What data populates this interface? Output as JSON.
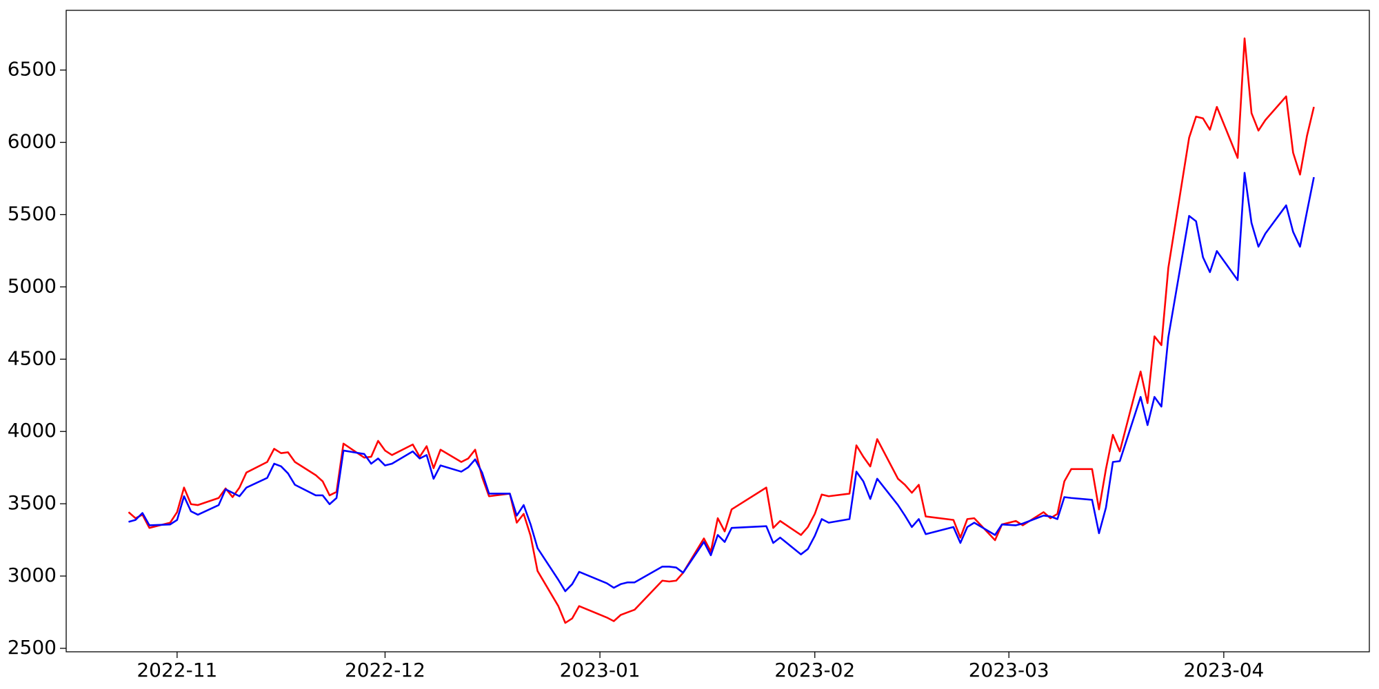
{
  "chart_data": {
    "type": "line",
    "x": [
      "2022-10-25",
      "2022-10-26",
      "2022-10-27",
      "2022-10-28",
      "2022-10-31",
      "2022-11-01",
      "2022-11-02",
      "2022-11-03",
      "2022-11-04",
      "2022-11-07",
      "2022-11-08",
      "2022-11-09",
      "2022-11-10",
      "2022-11-11",
      "2022-11-14",
      "2022-11-15",
      "2022-11-16",
      "2022-11-17",
      "2022-11-18",
      "2022-11-21",
      "2022-11-22",
      "2022-11-23",
      "2022-11-24",
      "2022-11-25",
      "2022-11-28",
      "2022-11-29",
      "2022-11-30",
      "2022-12-01",
      "2022-12-02",
      "2022-12-05",
      "2022-12-06",
      "2022-12-07",
      "2022-12-08",
      "2022-12-09",
      "2022-12-12",
      "2022-12-13",
      "2022-12-14",
      "2022-12-15",
      "2022-12-16",
      "2022-12-19",
      "2022-12-20",
      "2022-12-21",
      "2022-12-22",
      "2022-12-23",
      "2022-12-26",
      "2022-12-27",
      "2022-12-28",
      "2022-12-29",
      "2023-01-02",
      "2023-01-03",
      "2023-01-04",
      "2023-01-05",
      "2023-01-06",
      "2023-01-10",
      "2023-01-11",
      "2023-01-12",
      "2023-01-13",
      "2023-01-16",
      "2023-01-17",
      "2023-01-18",
      "2023-01-19",
      "2023-01-20",
      "2023-01-25",
      "2023-01-26",
      "2023-01-27",
      "2023-01-30",
      "2023-01-31",
      "2023-02-01",
      "2023-02-02",
      "2023-02-03",
      "2023-02-06",
      "2023-02-07",
      "2023-02-08",
      "2023-02-09",
      "2023-02-10",
      "2023-02-13",
      "2023-02-14",
      "2023-02-15",
      "2023-02-16",
      "2023-02-17",
      "2023-02-21",
      "2023-02-22",
      "2023-02-23",
      "2023-02-24",
      "2023-02-27",
      "2023-02-28",
      "2023-03-02",
      "2023-03-03",
      "2023-03-06",
      "2023-03-07",
      "2023-03-08",
      "2023-03-09",
      "2023-03-10",
      "2023-03-13",
      "2023-03-14",
      "2023-03-15",
      "2023-03-16",
      "2023-03-17",
      "2023-03-20",
      "2023-03-21",
      "2023-03-22",
      "2023-03-23",
      "2023-03-24",
      "2023-03-27",
      "2023-03-28",
      "2023-03-29",
      "2023-03-30",
      "2023-03-31",
      "2023-04-03",
      "2023-04-04",
      "2023-04-05",
      "2023-04-06",
      "2023-04-07",
      "2023-04-10",
      "2023-04-11",
      "2023-04-12",
      "2023-04-13",
      "2023-04-14"
    ],
    "series": [
      {
        "color": "#ff0000",
        "values": [
          3442,
          3400,
          3424,
          3333,
          3369,
          3442,
          3612,
          3497,
          3491,
          3540,
          3606,
          3546,
          3612,
          3716,
          3789,
          3880,
          3850,
          3856,
          3789,
          3698,
          3655,
          3558,
          3582,
          3916,
          3819,
          3825,
          3935,
          3868,
          3837,
          3910,
          3825,
          3898,
          3746,
          3874,
          3789,
          3813,
          3874,
          3685,
          3552,
          3570,
          3369,
          3430,
          3278,
          3035,
          2792,
          2676,
          2707,
          2792,
          2713,
          2688,
          2731,
          2749,
          2767,
          2968,
          2962,
          2968,
          3023,
          3260,
          3169,
          3400,
          3309,
          3461,
          3612,
          3333,
          3381,
          3284,
          3339,
          3430,
          3564,
          3552,
          3570,
          3904,
          3825,
          3758,
          3947,
          3673,
          3631,
          3576,
          3631,
          3412,
          3388,
          3266,
          3394,
          3400,
          3248,
          3357,
          3381,
          3351,
          3442,
          3400,
          3430,
          3655,
          3740,
          3740,
          3461,
          3740,
          3977,
          3862,
          4415,
          4196,
          4658,
          4597,
          5132,
          6032,
          6178,
          6166,
          6087,
          6245,
          5892,
          6719,
          6202,
          6081,
          6154,
          6318,
          5929,
          5777,
          6044,
          6245
        ]
      },
      {
        "color": "#0000ff",
        "values": [
          3375,
          3388,
          3436,
          3351,
          3357,
          3388,
          3552,
          3448,
          3424,
          3491,
          3600,
          3576,
          3552,
          3612,
          3679,
          3777,
          3759,
          3710,
          3631,
          3558,
          3558,
          3497,
          3540,
          3868,
          3844,
          3777,
          3813,
          3765,
          3777,
          3862,
          3813,
          3837,
          3673,
          3765,
          3722,
          3752,
          3807,
          3716,
          3570,
          3570,
          3418,
          3491,
          3357,
          3193,
          2974,
          2895,
          2944,
          3029,
          2950,
          2919,
          2944,
          2956,
          2956,
          3065,
          3065,
          3059,
          3023,
          3236,
          3144,
          3284,
          3236,
          3333,
          3345,
          3229,
          3266,
          3150,
          3187,
          3278,
          3394,
          3369,
          3394,
          3722,
          3655,
          3533,
          3673,
          3491,
          3418,
          3339,
          3394,
          3290,
          3339,
          3229,
          3339,
          3369,
          3284,
          3357,
          3351,
          3363,
          3418,
          3412,
          3394,
          3546,
          3540,
          3527,
          3296,
          3473,
          3789,
          3795,
          4239,
          4044,
          4239,
          4172,
          4652,
          5491,
          5454,
          5205,
          5102,
          5248,
          5047,
          5789,
          5442,
          5278,
          5369,
          5564,
          5381,
          5278,
          5520,
          5759
        ]
      }
    ],
    "xlim": [
      "2022-10-16",
      "2023-04-22"
    ],
    "xticks": [
      {
        "value": "2022-11-01",
        "label": "2022-11"
      },
      {
        "value": "2022-12-01",
        "label": "2022-12"
      },
      {
        "value": "2023-01-01",
        "label": "2023-01"
      },
      {
        "value": "2023-02-01",
        "label": "2023-02"
      },
      {
        "value": "2023-03-01",
        "label": "2023-03"
      },
      {
        "value": "2023-04-01",
        "label": "2023-04"
      }
    ],
    "ylim": [
      2476,
      6913
    ],
    "yticks": [
      2500,
      3000,
      3500,
      4000,
      4500,
      5000,
      5500,
      6000,
      6500
    ]
  }
}
